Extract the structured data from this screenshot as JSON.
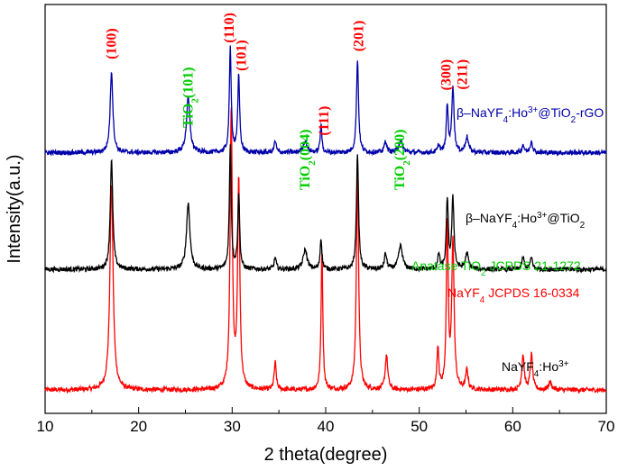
{
  "chart_data": {
    "type": "line",
    "title": "",
    "xlabel": "2 theta(degree)",
    "ylabel": "Intensity(a.u.)",
    "xlim": [
      10,
      70
    ],
    "xticks": [
      10,
      20,
      30,
      40,
      50,
      60,
      70
    ],
    "grid": false,
    "series": [
      {
        "name": "NaYF4:Ho3+",
        "label": {
          "main": "NaYF",
          "sub": "4",
          "mid": ":Ho",
          "sup": "3+",
          "tail": ""
        },
        "color": "#ff0000",
        "baseline": 0.03,
        "peaks": [
          [
            17.1,
            0.53,
            0.2
          ],
          [
            29.9,
            0.72,
            0.14
          ],
          [
            30.7,
            0.53,
            0.14
          ],
          [
            34.6,
            0.07,
            0.13
          ],
          [
            39.6,
            0.36,
            0.11
          ],
          [
            43.4,
            0.57,
            0.14
          ],
          [
            46.5,
            0.09,
            0.16
          ],
          [
            52.0,
            0.11,
            0.12
          ],
          [
            53.0,
            0.42,
            0.12
          ],
          [
            53.6,
            0.38,
            0.15
          ],
          [
            55.1,
            0.05,
            0.15
          ],
          [
            61.1,
            0.09,
            0.15
          ],
          [
            62.0,
            0.09,
            0.15
          ],
          [
            64.0,
            0.02,
            0.2
          ]
        ]
      },
      {
        "name": "β–NaYF4:Ho3+@TiO2",
        "label": {
          "main": "β–NaYF",
          "sub": "4",
          "mid": ":Ho",
          "sup": "3+",
          "tail": "@TiO",
          "sub2": "2"
        },
        "color": "#000000",
        "baseline": 0.34,
        "peaks": [
          [
            17.1,
            0.28,
            0.16
          ],
          [
            25.3,
            0.17,
            0.22
          ],
          [
            29.8,
            0.32,
            0.12
          ],
          [
            30.7,
            0.19,
            0.12
          ],
          [
            34.6,
            0.03,
            0.13
          ],
          [
            37.8,
            0.05,
            0.25
          ],
          [
            39.5,
            0.08,
            0.11
          ],
          [
            43.4,
            0.3,
            0.13
          ],
          [
            46.4,
            0.04,
            0.15
          ],
          [
            48.0,
            0.06,
            0.25
          ],
          [
            52.1,
            0.04,
            0.12
          ],
          [
            53.0,
            0.18,
            0.12
          ],
          [
            53.6,
            0.18,
            0.14
          ],
          [
            55.1,
            0.04,
            0.2
          ],
          [
            61.1,
            0.03,
            0.15
          ],
          [
            62.0,
            0.03,
            0.15
          ]
        ]
      },
      {
        "name": "β–NaYF4:Ho3+@TiO2-rGO",
        "label": {
          "main": "β–NaYF",
          "sub": "4",
          "mid": ":Ho",
          "sup": "3+",
          "tail": "@TiO",
          "sub2": "2",
          "tail2": "-rGO"
        },
        "color": "#0000aa",
        "baseline": 0.64,
        "peaks": [
          [
            17.1,
            0.21,
            0.17
          ],
          [
            25.3,
            0.14,
            0.22
          ],
          [
            29.8,
            0.27,
            0.12
          ],
          [
            30.7,
            0.2,
            0.12
          ],
          [
            34.6,
            0.03,
            0.13
          ],
          [
            37.8,
            0.03,
            0.25
          ],
          [
            39.5,
            0.07,
            0.11
          ],
          [
            43.4,
            0.24,
            0.13
          ],
          [
            46.4,
            0.03,
            0.15
          ],
          [
            48.0,
            0.03,
            0.25
          ],
          [
            52.1,
            0.02,
            0.12
          ],
          [
            53.0,
            0.12,
            0.12
          ],
          [
            53.6,
            0.17,
            0.14
          ],
          [
            55.1,
            0.04,
            0.2
          ],
          [
            61.1,
            0.02,
            0.15
          ],
          [
            62.0,
            0.03,
            0.15
          ]
        ]
      }
    ],
    "annotations": [
      {
        "text": "(100)",
        "x": 17.1,
        "y": 0.96,
        "color": "#ff0000"
      },
      {
        "text": "TiO2(101)",
        "main": "TiO",
        "sub": "2",
        "tail": "(101)",
        "x": 25.3,
        "y": 0.86,
        "color": "#00cc00"
      },
      {
        "text": "(110)",
        "x": 29.7,
        "y": 1.0,
        "color": "#ff0000"
      },
      {
        "text": "(101)",
        "x": 31.0,
        "y": 0.93,
        "color": "#ff0000"
      },
      {
        "text": "TiO2(004)",
        "main": "TiO",
        "sub": "2",
        "tail": "(004)",
        "x": 37.8,
        "y": 0.7,
        "color": "#00cc00"
      },
      {
        "text": "(111)",
        "x": 39.8,
        "y": 0.76,
        "color": "#ff0000"
      },
      {
        "text": "(201)",
        "x": 43.5,
        "y": 0.98,
        "color": "#ff0000"
      },
      {
        "text": "TiO2(200)",
        "main": "TiO",
        "sub": "2",
        "tail": "(200)",
        "x": 47.9,
        "y": 0.7,
        "color": "#00cc00"
      },
      {
        "text": "(300)",
        "x": 52.9,
        "y": 0.88,
        "color": "#ff0000"
      },
      {
        "text": "(211)",
        "x": 54.6,
        "y": 0.88,
        "color": "#ff0000"
      }
    ],
    "reference_labels": [
      {
        "text": "Anatase TiO2 JCPDS 21-1272",
        "pre": "Anatase TiO",
        "sub": "2",
        "post": " JCPDS 21-1272",
        "color": "#00cc00"
      },
      {
        "text": "NaYF4 JCPDS 16-0334",
        "pre": "NaYF",
        "sub": "4",
        "post": " JCPDS 16-0334",
        "color": "#ff0000"
      }
    ]
  }
}
